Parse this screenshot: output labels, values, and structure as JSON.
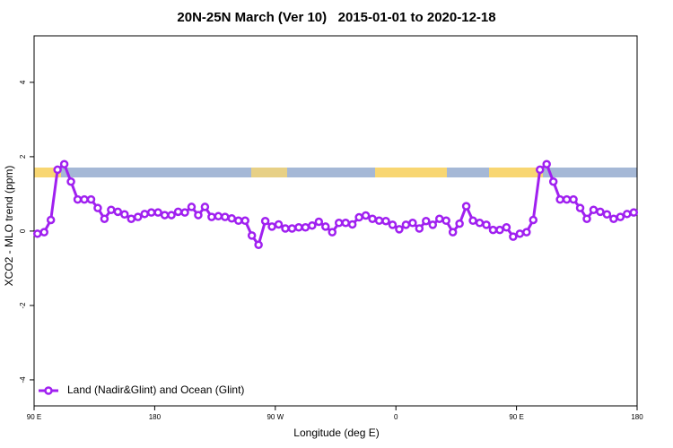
{
  "chart_data": {
    "type": "line",
    "title": "20N-25N March (Ver 10)   2015-01-01 to 2020-12-18",
    "x_label": "Longitude (deg E)",
    "y_label": "XCO2 - MLO trend (ppm)",
    "x": [
      92.5,
      97.5,
      102.5,
      107.5,
      112.5,
      117.5,
      122.5,
      127.5,
      132.5,
      137.5,
      142.5,
      147.5,
      152.5,
      157.5,
      162.5,
      167.5,
      172.5,
      177.5,
      182.5,
      187.5,
      192.5,
      197.5,
      202.5,
      207.5,
      212.5,
      217.5,
      222.5,
      227.5,
      232.5,
      237.5,
      242.5,
      247.5,
      252.5,
      257.5,
      262.5,
      267.5,
      272.5,
      277.5,
      282.5,
      287.5,
      292.5,
      297.5,
      302.5,
      307.5,
      312.5,
      317.5,
      322.5,
      327.5,
      332.5,
      337.5,
      342.5,
      347.5,
      352.5,
      357.5,
      362.5,
      367.5,
      372.5,
      377.5,
      382.5,
      387.5,
      392.5,
      397.5,
      402.5,
      407.5,
      412.5,
      417.5,
      422.5,
      427.5,
      432.5,
      437.5,
      442.5,
      447.5,
      452.5,
      457.5,
      462.5,
      467.5,
      472.5,
      477.5,
      482.5,
      487.5,
      492.5,
      497.5,
      502.5,
      507.5,
      512.5,
      517.5,
      522.5,
      527.5,
      532.5,
      537.5
    ],
    "series": [
      {
        "name": "Land (Nadir&Glint) and Ocean (Glint)",
        "color": "#a020f0",
        "values": [
          -0.07,
          -0.03,
          0.3,
          1.65,
          1.8,
          1.33,
          0.85,
          0.85,
          0.85,
          0.62,
          0.33,
          0.57,
          0.52,
          0.45,
          0.33,
          0.38,
          0.46,
          0.5,
          0.5,
          0.43,
          0.43,
          0.52,
          0.5,
          0.65,
          0.43,
          0.65,
          0.38,
          0.4,
          0.38,
          0.34,
          0.28,
          0.28,
          -0.12,
          -0.37,
          0.27,
          0.12,
          0.18,
          0.07,
          0.07,
          0.1,
          0.1,
          0.15,
          0.25,
          0.12,
          -0.03,
          0.22,
          0.22,
          0.18,
          0.37,
          0.42,
          0.33,
          0.28,
          0.27,
          0.17,
          0.05,
          0.17,
          0.22,
          0.07,
          0.27,
          0.17,
          0.33,
          0.28,
          -0.03,
          0.2,
          0.67,
          0.28,
          0.22,
          0.17,
          0.03,
          0.03,
          0.1,
          -0.15,
          -0.07,
          -0.03,
          0.3,
          1.65,
          1.8,
          1.33,
          0.85,
          0.85,
          0.85,
          0.62,
          0.33,
          0.57,
          0.52,
          0.45,
          0.33,
          0.38,
          0.46,
          0.5
        ]
      }
    ],
    "xlim": [
      90,
      540
    ],
    "xticks": [
      {
        "value": 90,
        "label": "90 E"
      },
      180,
      {
        "value": 270,
        "label": "90 W"
      },
      {
        "value": 360,
        "label": "0"
      },
      {
        "value": 450,
        "label": "90 E"
      },
      {
        "value": 540,
        "label": "180"
      }
    ],
    "ylim": [
      -4.7,
      5.25
    ],
    "yticks": [
      -4,
      -2,
      0,
      2,
      4
    ],
    "legend": "bottom-left"
  }
}
